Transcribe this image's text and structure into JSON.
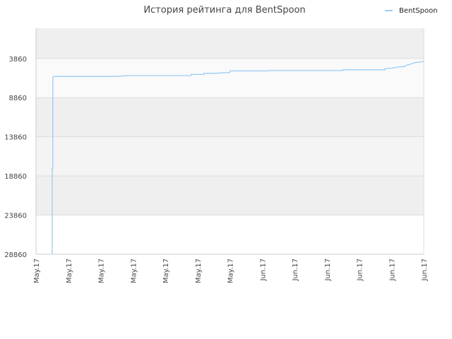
{
  "chart_data": {
    "type": "line",
    "title": "История рейтинга для BentSpoon",
    "legend": {
      "position": "top-right"
    },
    "colors": {
      "line": "#99ccf5",
      "band_dark": "#efefef",
      "band_light": "#ffffff",
      "grid": "#dddddd",
      "axis": "#cccccc"
    },
    "y_axis": {
      "reversed": true,
      "range": [
        28860,
        0
      ],
      "ticks": [
        3860,
        8860,
        13860,
        18860,
        23860,
        28860
      ],
      "tick_labels": [
        "3860",
        "8860",
        "13860",
        "18860",
        "23860",
        "28860"
      ]
    },
    "x_axis": {
      "tick_labels": [
        "May.17",
        "May.17",
        "May.17",
        "May.17",
        "May.17",
        "May.17",
        "May.17",
        "Jun.17",
        "Jun.17",
        "Jun.17",
        "Jun.17",
        "Jun.17",
        "Jun.17"
      ]
    },
    "series": [
      {
        "name": "BentSpoon",
        "x": [
          0.5,
          0.5,
          0.52,
          0.52,
          0.55,
          0.6,
          1.0,
          2.5,
          2.8,
          4.0,
          4.8,
          4.8,
          5.0,
          5.2,
          5.2,
          5.5,
          6.0,
          6.0,
          7.0,
          7.2,
          7.2,
          9.0,
          9.5,
          9.5,
          10.5,
          10.8,
          10.8,
          11.0,
          11.2,
          11.4,
          11.5,
          11.55,
          11.7,
          12.0
        ],
        "y": [
          28860,
          17900,
          17900,
          6300,
          6150,
          6150,
          6150,
          6150,
          6050,
          6050,
          6050,
          5900,
          5900,
          5900,
          5750,
          5750,
          5650,
          5450,
          5450,
          5450,
          5400,
          5400,
          5400,
          5300,
          5300,
          5300,
          5150,
          5100,
          4950,
          4900,
          4650,
          4650,
          4400,
          4250
        ]
      }
    ]
  }
}
